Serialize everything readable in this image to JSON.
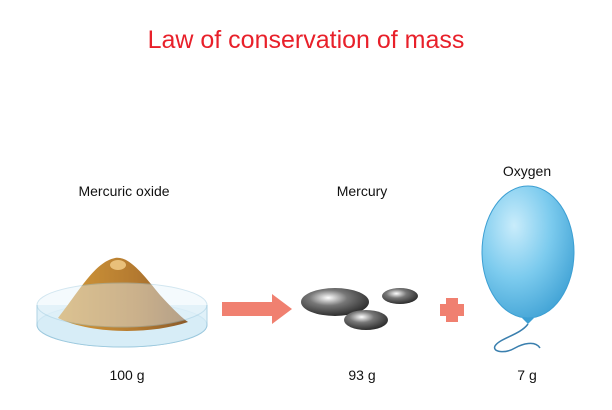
{
  "title": "Law of conservation of mass",
  "items": [
    {
      "label": "Mercuric oxide",
      "mass": "100 g"
    },
    {
      "label": "Mercury",
      "mass": "93 g"
    },
    {
      "label": "Oxygen",
      "mass": "7 g"
    }
  ]
}
